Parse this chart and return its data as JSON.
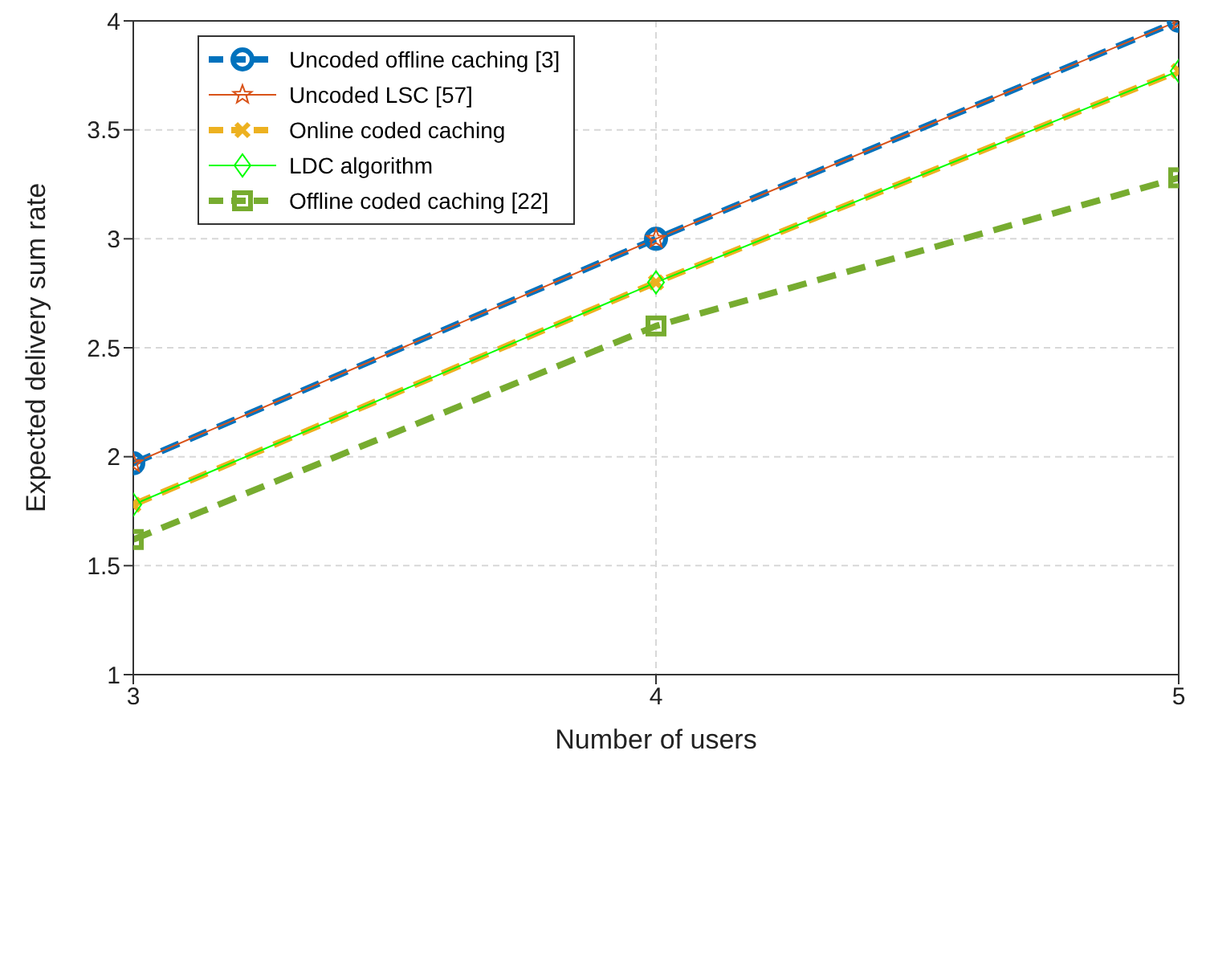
{
  "chart_data": {
    "type": "line",
    "xlabel": "Number of users",
    "ylabel": "Expected delivery sum rate",
    "x": [
      3,
      4,
      5
    ],
    "xlim": [
      3,
      5
    ],
    "xticks": [
      3,
      4,
      5
    ],
    "ylim": [
      1,
      4
    ],
    "yticks": [
      1,
      1.5,
      2,
      2.5,
      3,
      3.5,
      4
    ],
    "grid": true,
    "legend": "top left",
    "series": [
      {
        "name": "Uncoded offline caching [3]",
        "color": "#0072bd",
        "values": [
          1.97,
          3.0,
          4.0
        ],
        "marker": "circle",
        "line_style": "dashed"
      },
      {
        "name": "Uncoded LSC [57]",
        "color": "#d95319",
        "values": [
          1.97,
          3.0,
          4.0
        ],
        "marker": "star",
        "line_style": "solid"
      },
      {
        "name": "Online coded caching",
        "color": "#edb120",
        "values": [
          1.78,
          2.8,
          3.77
        ],
        "marker": "cross",
        "line_style": "dashed"
      },
      {
        "name": "LDC algorithm",
        "color": "#00ff00",
        "values": [
          1.78,
          2.8,
          3.77
        ],
        "marker": "diamond",
        "line_style": "solid"
      },
      {
        "name": "Offline coded caching [22]",
        "color": "#77ac30",
        "values": [
          1.62,
          2.6,
          3.28
        ],
        "marker": "square",
        "line_style": "dashed"
      }
    ]
  }
}
